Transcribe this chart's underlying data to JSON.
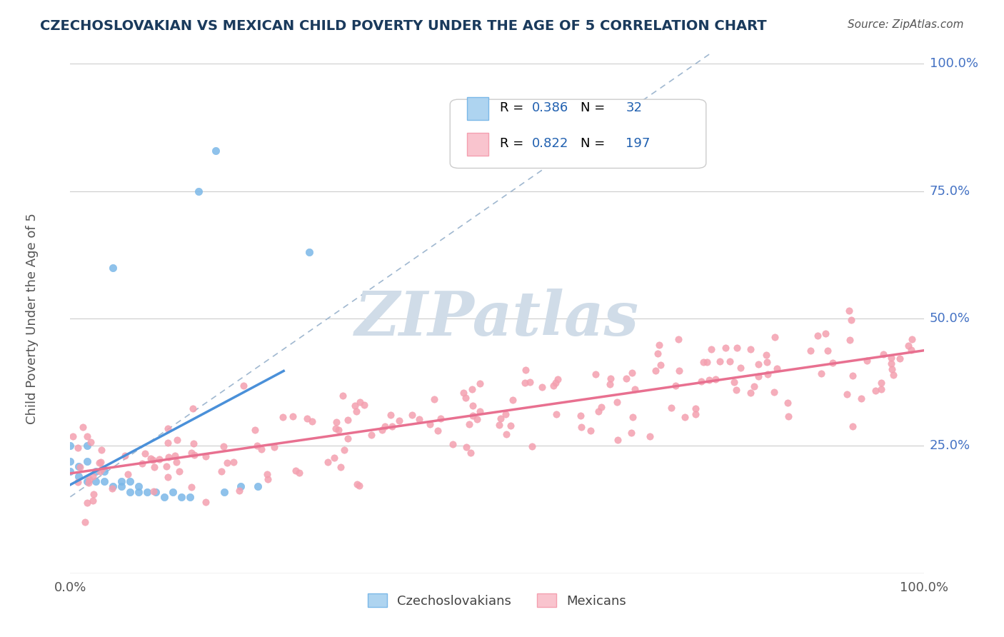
{
  "title": "CZECHOSLOVAKIAN VS MEXICAN CHILD POVERTY UNDER THE AGE OF 5 CORRELATION CHART",
  "source": "Source: ZipAtlas.com",
  "ylabel": "Child Poverty Under the Age of 5",
  "legend_label1": "Czechoslovakians",
  "legend_label2": "Mexicans",
  "R1": 0.386,
  "N1": 32,
  "R2": 0.822,
  "N2": 197,
  "color1": "#7BB8E8",
  "color2": "#F4A0B0",
  "color1_fill": "#AED4F0",
  "color2_fill": "#F9C4CE",
  "regression_color1": "#4A90D9",
  "regression_color2": "#E87090",
  "dashed_line_color": "#A0B8D0",
  "watermark_color": "#D0DCE8",
  "background_color": "#FFFFFF",
  "title_color": "#1A3A5C",
  "source_color": "#555555",
  "axis_label_color": "#555555",
  "tick_color": "#4472C4",
  "legend_value_color": "#2060B0"
}
